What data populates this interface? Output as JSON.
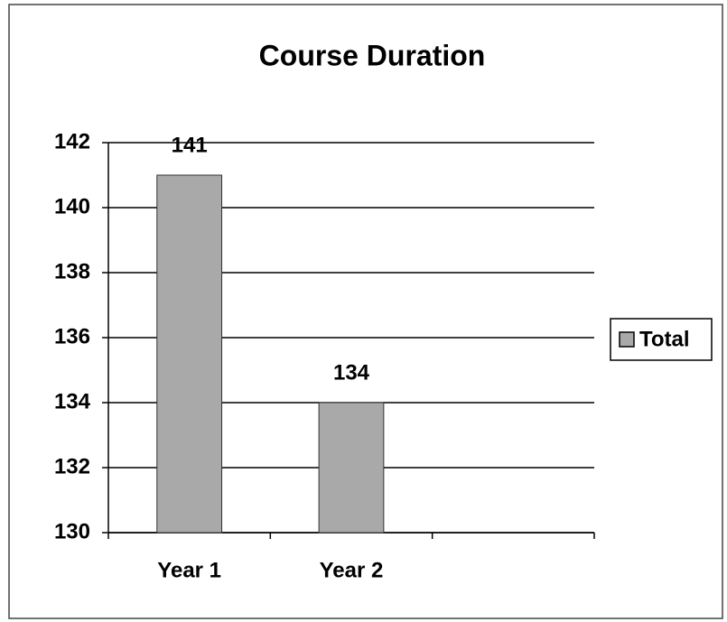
{
  "chart_data": {
    "type": "bar",
    "title": "Course Duration",
    "categories": [
      "Year 1",
      "Year 2",
      null
    ],
    "series": [
      {
        "name": "Total",
        "color": "#a9a9a9",
        "values": [
          141,
          134,
          null
        ]
      }
    ],
    "ylim": [
      130,
      142
    ],
    "yticks": [
      130,
      132,
      134,
      136,
      138,
      140,
      142
    ],
    "grid": true,
    "legend": "right"
  }
}
